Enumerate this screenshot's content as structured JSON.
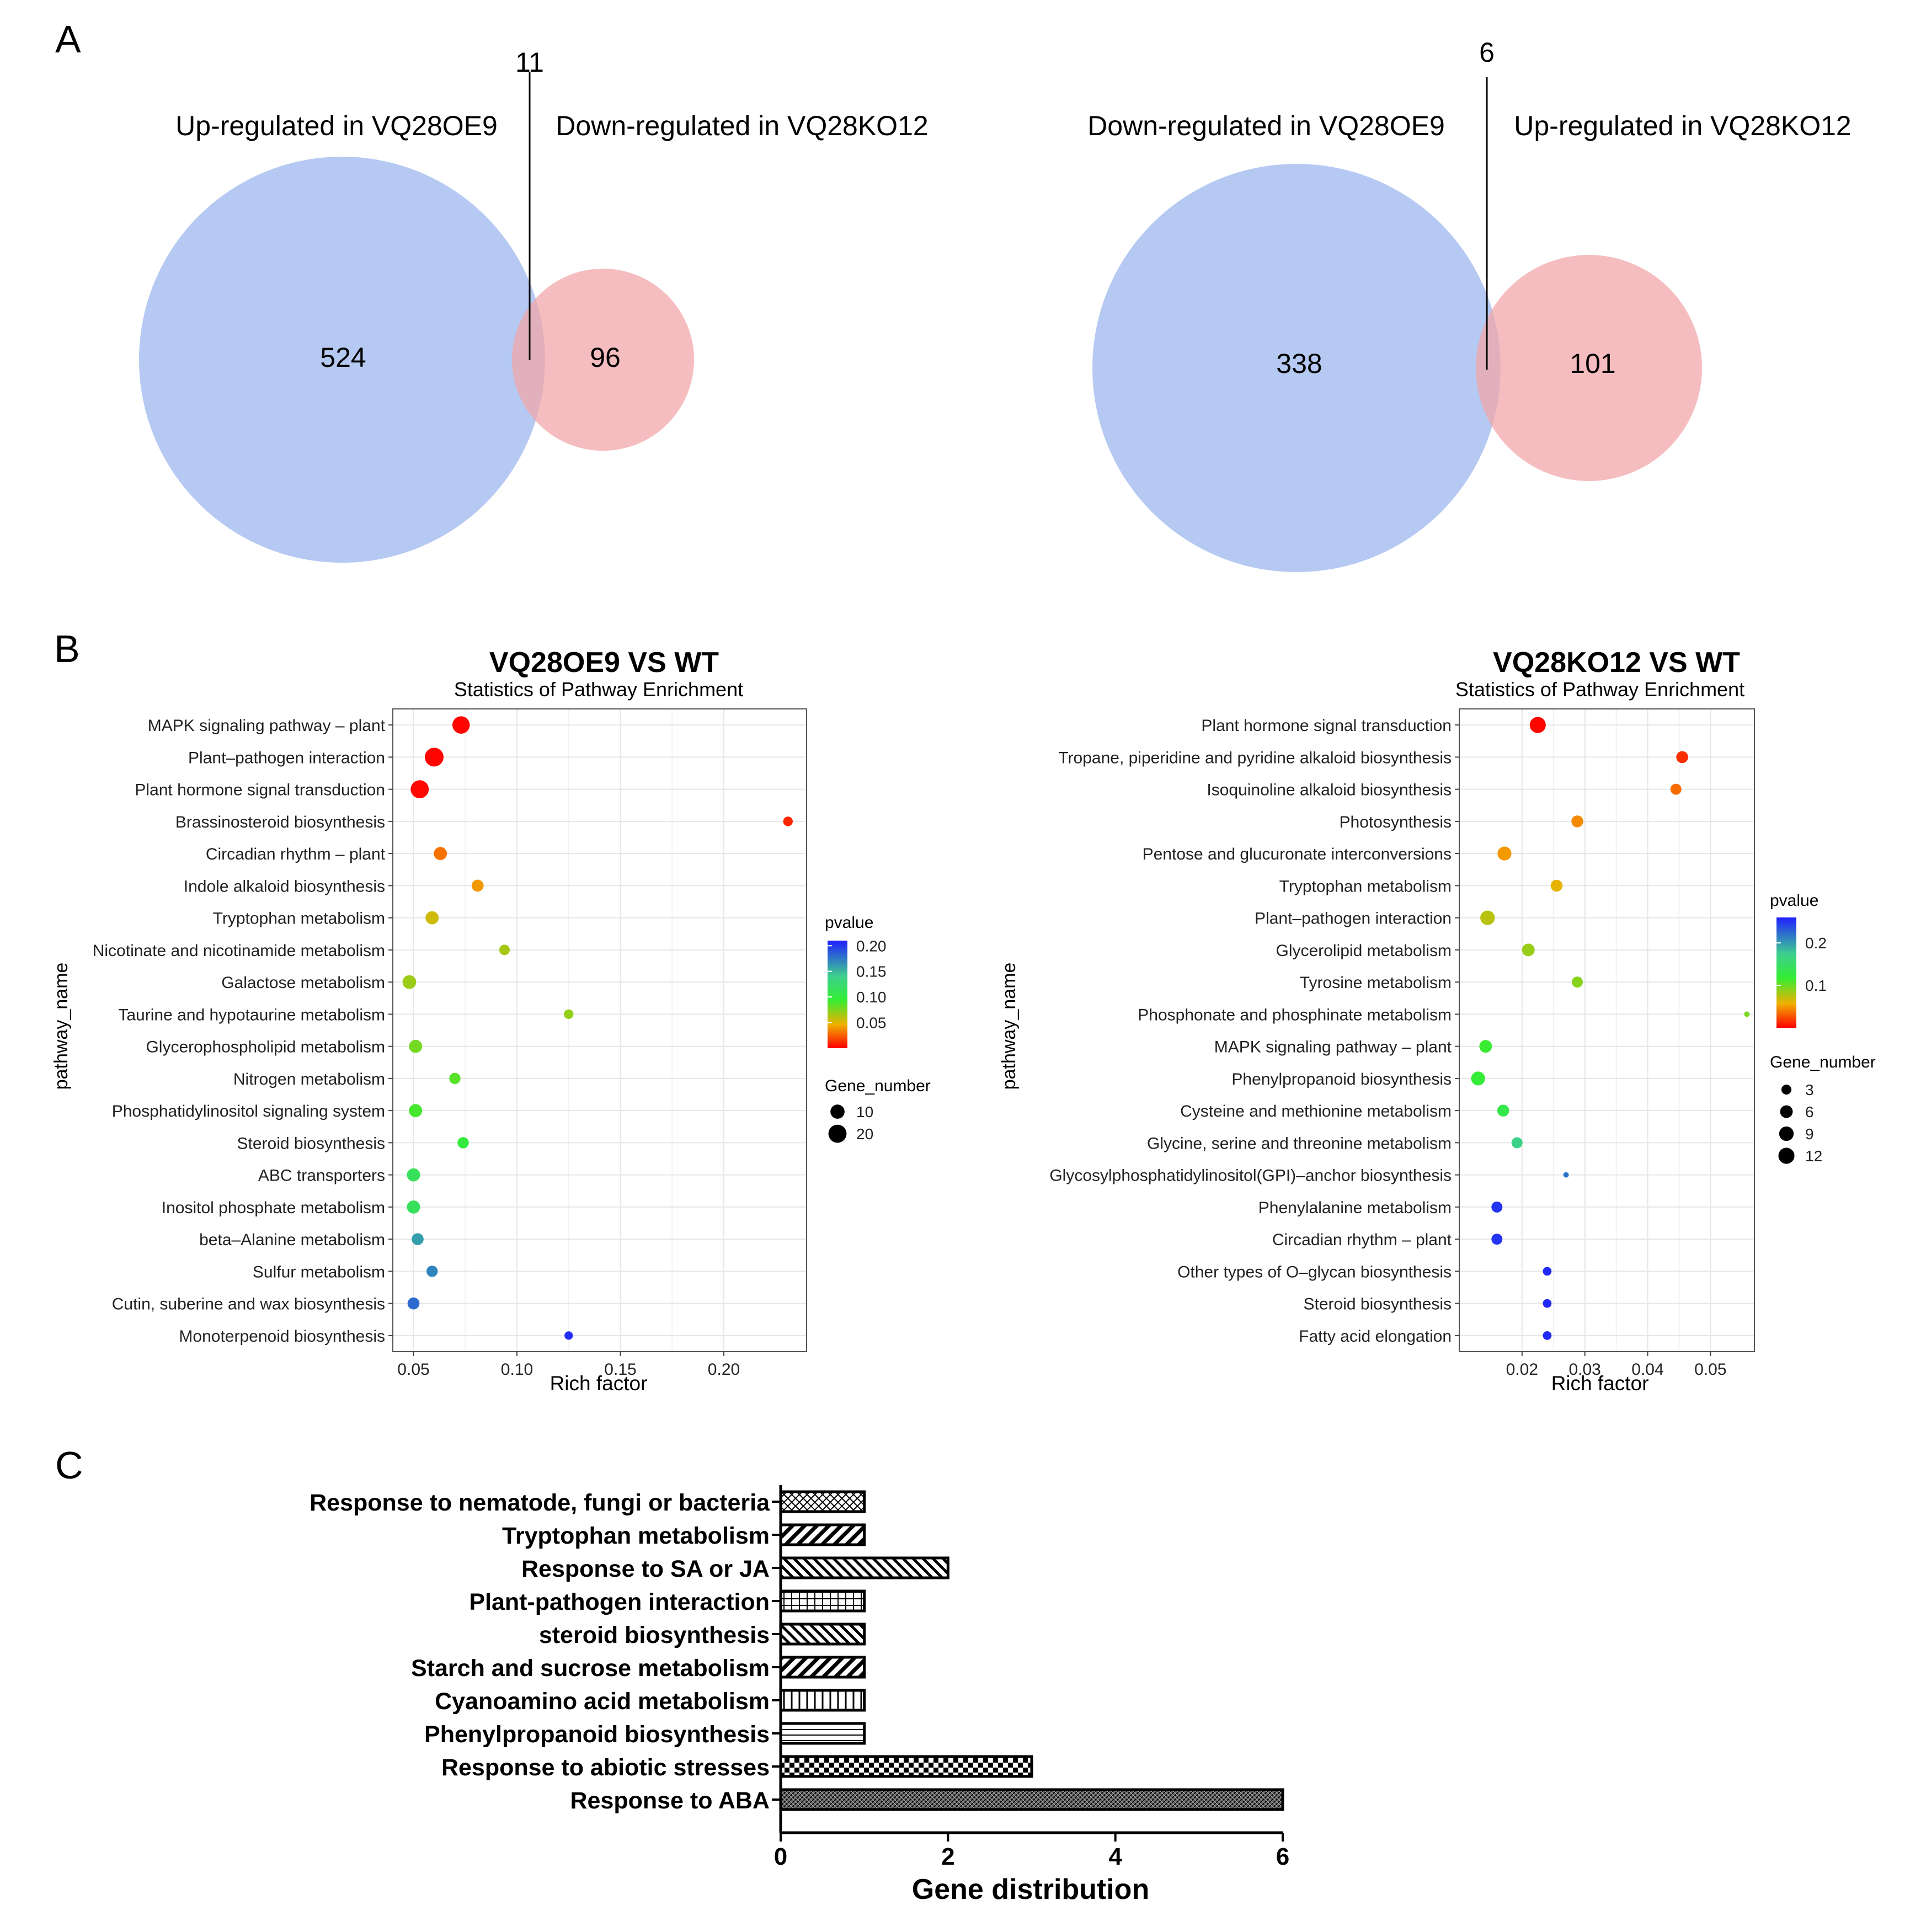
{
  "panel_labels": {
    "a": "A",
    "b": "B",
    "c": "C"
  },
  "colors": {
    "venn_blue": "#a8c0f0",
    "venn_red": "#f2a7a9",
    "bar_stroke": "#000000"
  },
  "chart_data": [
    {
      "type": "venn",
      "panel": "A",
      "left_label": "Up-regulated in VQ28OE9",
      "right_label": "Down-regulated in VQ28KO12",
      "left_only": 524,
      "right_only": 96,
      "overlap": 11
    },
    {
      "type": "venn",
      "panel": "A",
      "left_label": "Down-regulated in VQ28OE9",
      "right_label": "Up-regulated in VQ28KO12",
      "left_only": 338,
      "right_only": 101,
      "overlap": 6
    },
    {
      "type": "scatter",
      "panel": "B",
      "title": "VQ28OE9 VS WT",
      "subtitle": "Statistics of Pathway Enrichment",
      "xlabel": "Rich factor",
      "ylabel": "pathway_name",
      "xlim": [
        0.04,
        0.24
      ],
      "xticks": [
        0.05,
        0.1,
        0.15,
        0.2
      ],
      "xtick_labels": [
        "0.05",
        "0.10",
        "0.15",
        "0.20"
      ],
      "color_legend": {
        "title": "pvalue",
        "range": [
          0.0,
          0.21
        ],
        "ticks": [
          0.2,
          0.15,
          0.1,
          0.05
        ],
        "tick_labels": [
          "0.20",
          "0.15",
          "0.10",
          "0.05"
        ]
      },
      "size_legend": {
        "title": "Gene_number",
        "values": [
          10,
          20
        ],
        "labels": [
          "10",
          "20"
        ],
        "range": [
          1,
          22
        ]
      },
      "categories": [
        "MAPK signaling pathway – plant",
        "Plant–pathogen interaction",
        "Plant hormone signal transduction",
        "Brassinosteroid biosynthesis",
        "Circadian rhythm – plant",
        "Indole alkaloid biosynthesis",
        "Tryptophan metabolism",
        "Nicotinate and nicotinamide metabolism",
        "Galactose metabolism",
        "Taurine and hypotaurine metabolism",
        "Glycerophospholipid metabolism",
        "Nitrogen metabolism",
        "Phosphatidylinositol signaling system",
        "Steroid biosynthesis",
        "ABC transporters",
        "Inositol phosphate metabolism",
        "beta–Alanine metabolism",
        "Sulfur metabolism",
        "Cutin, suberine and wax biosynthesis",
        "Monoterpenoid biosynthesis"
      ],
      "points": [
        {
          "x": 0.073,
          "pvalue": 0.001,
          "genes": 18
        },
        {
          "x": 0.06,
          "pvalue": 0.001,
          "genes": 22
        },
        {
          "x": 0.053,
          "pvalue": 0.002,
          "genes": 20
        },
        {
          "x": 0.231,
          "pvalue": 0.01,
          "genes": 3
        },
        {
          "x": 0.063,
          "pvalue": 0.03,
          "genes": 8
        },
        {
          "x": 0.081,
          "pvalue": 0.04,
          "genes": 6
        },
        {
          "x": 0.059,
          "pvalue": 0.055,
          "genes": 8
        },
        {
          "x": 0.094,
          "pvalue": 0.065,
          "genes": 4
        },
        {
          "x": 0.048,
          "pvalue": 0.068,
          "genes": 9
        },
        {
          "x": 0.125,
          "pvalue": 0.07,
          "genes": 3
        },
        {
          "x": 0.051,
          "pvalue": 0.078,
          "genes": 8
        },
        {
          "x": 0.07,
          "pvalue": 0.085,
          "genes": 5
        },
        {
          "x": 0.051,
          "pvalue": 0.09,
          "genes": 8
        },
        {
          "x": 0.074,
          "pvalue": 0.1,
          "genes": 5
        },
        {
          "x": 0.05,
          "pvalue": 0.115,
          "genes": 8
        },
        {
          "x": 0.05,
          "pvalue": 0.115,
          "genes": 8
        },
        {
          "x": 0.052,
          "pvalue": 0.16,
          "genes": 6
        },
        {
          "x": 0.059,
          "pvalue": 0.17,
          "genes": 5
        },
        {
          "x": 0.05,
          "pvalue": 0.18,
          "genes": 6
        },
        {
          "x": 0.125,
          "pvalue": 0.205,
          "genes": 2
        }
      ]
    },
    {
      "type": "scatter",
      "panel": "B",
      "title": "VQ28KO12 VS WT",
      "subtitle": "Statistics of Pathway Enrichment",
      "xlabel": "Rich factor",
      "ylabel": "pathway_name",
      "xlim": [
        0.01,
        0.057
      ],
      "xticks": [
        0.02,
        0.03,
        0.04,
        0.05
      ],
      "xtick_labels": [
        "0.02",
        "0.03",
        "0.04",
        "0.05"
      ],
      "color_legend": {
        "title": "pvalue",
        "range": [
          0.0,
          0.26
        ],
        "ticks": [
          0.2,
          0.1
        ],
        "tick_labels": [
          "0.2",
          "0.1"
        ]
      },
      "size_legend": {
        "title": "Gene_number",
        "values": [
          3,
          6,
          9,
          12
        ],
        "labels": [
          "3",
          "6",
          "9",
          "12"
        ],
        "range": [
          1,
          13
        ]
      },
      "categories": [
        "Plant hormone signal transduction",
        "Tropane, piperidine and pyridine alkaloid biosynthesis",
        "Isoquinoline alkaloid biosynthesis",
        "Photosynthesis",
        "Pentose and glucuronate interconversions",
        "Tryptophan metabolism",
        "Plant–pathogen interaction",
        "Glycerolipid metabolism",
        "Tyrosine metabolism",
        "Phosphonate and phosphinate metabolism",
        "MAPK signaling pathway – plant",
        "Phenylpropanoid biosynthesis",
        "Cysteine and methionine metabolism",
        "Glycine, serine and threonine metabolism",
        "Glycosylphosphatidylinositol(GPI)–anchor biosynthesis",
        "Phenylalanine metabolism",
        "Circadian rhythm – plant",
        "Other types of O–glycan biosynthesis",
        "Steroid biosynthesis",
        "Fatty acid elongation"
      ],
      "points": [
        {
          "x": 0.0225,
          "pvalue": 0.002,
          "genes": 12
        },
        {
          "x": 0.0455,
          "pvalue": 0.015,
          "genes": 5
        },
        {
          "x": 0.0445,
          "pvalue": 0.035,
          "genes": 4
        },
        {
          "x": 0.0288,
          "pvalue": 0.045,
          "genes": 5
        },
        {
          "x": 0.0172,
          "pvalue": 0.05,
          "genes": 8
        },
        {
          "x": 0.0255,
          "pvalue": 0.06,
          "genes": 5
        },
        {
          "x": 0.0145,
          "pvalue": 0.075,
          "genes": 9
        },
        {
          "x": 0.021,
          "pvalue": 0.085,
          "genes": 6
        },
        {
          "x": 0.0288,
          "pvalue": 0.09,
          "genes": 4
        },
        {
          "x": 0.0558,
          "pvalue": 0.095,
          "genes": 1
        },
        {
          "x": 0.0142,
          "pvalue": 0.115,
          "genes": 6
        },
        {
          "x": 0.013,
          "pvalue": 0.12,
          "genes": 8
        },
        {
          "x": 0.017,
          "pvalue": 0.13,
          "genes": 5
        },
        {
          "x": 0.0192,
          "pvalue": 0.17,
          "genes": 4
        },
        {
          "x": 0.027,
          "pvalue": 0.22,
          "genes": 1
        },
        {
          "x": 0.016,
          "pvalue": 0.25,
          "genes": 4
        },
        {
          "x": 0.016,
          "pvalue": 0.25,
          "genes": 4
        },
        {
          "x": 0.024,
          "pvalue": 0.255,
          "genes": 2
        },
        {
          "x": 0.024,
          "pvalue": 0.255,
          "genes": 2
        },
        {
          "x": 0.024,
          "pvalue": 0.255,
          "genes": 2
        }
      ]
    },
    {
      "type": "bar",
      "panel": "C",
      "orientation": "horizontal",
      "xlabel": "Gene distribution",
      "xlim": [
        0,
        6
      ],
      "xticks": [
        0,
        2,
        4,
        6
      ],
      "xtick_labels": [
        "0",
        "2",
        "4",
        "6"
      ],
      "categories": [
        "Response to nematode, fungi or bacteria",
        "Tryptophan metabolism",
        "Response to SA or JA",
        "Plant-pathogen interaction",
        "steroid biosynthesis",
        "Starch and sucrose metabolism",
        "Cyanoamino acid metabolism",
        "Phenylpropanoid biosynthesis",
        "Response to abiotic stresses",
        "Response to ABA"
      ],
      "values": [
        1,
        1,
        2,
        1,
        1,
        1,
        1,
        1,
        3,
        6
      ],
      "patterns": [
        "crosshatch",
        "diag-right",
        "diag-left",
        "vertical-grid",
        "diag-left",
        "diag-right",
        "vertical",
        "horizontal",
        "checker",
        "dense"
      ]
    }
  ]
}
